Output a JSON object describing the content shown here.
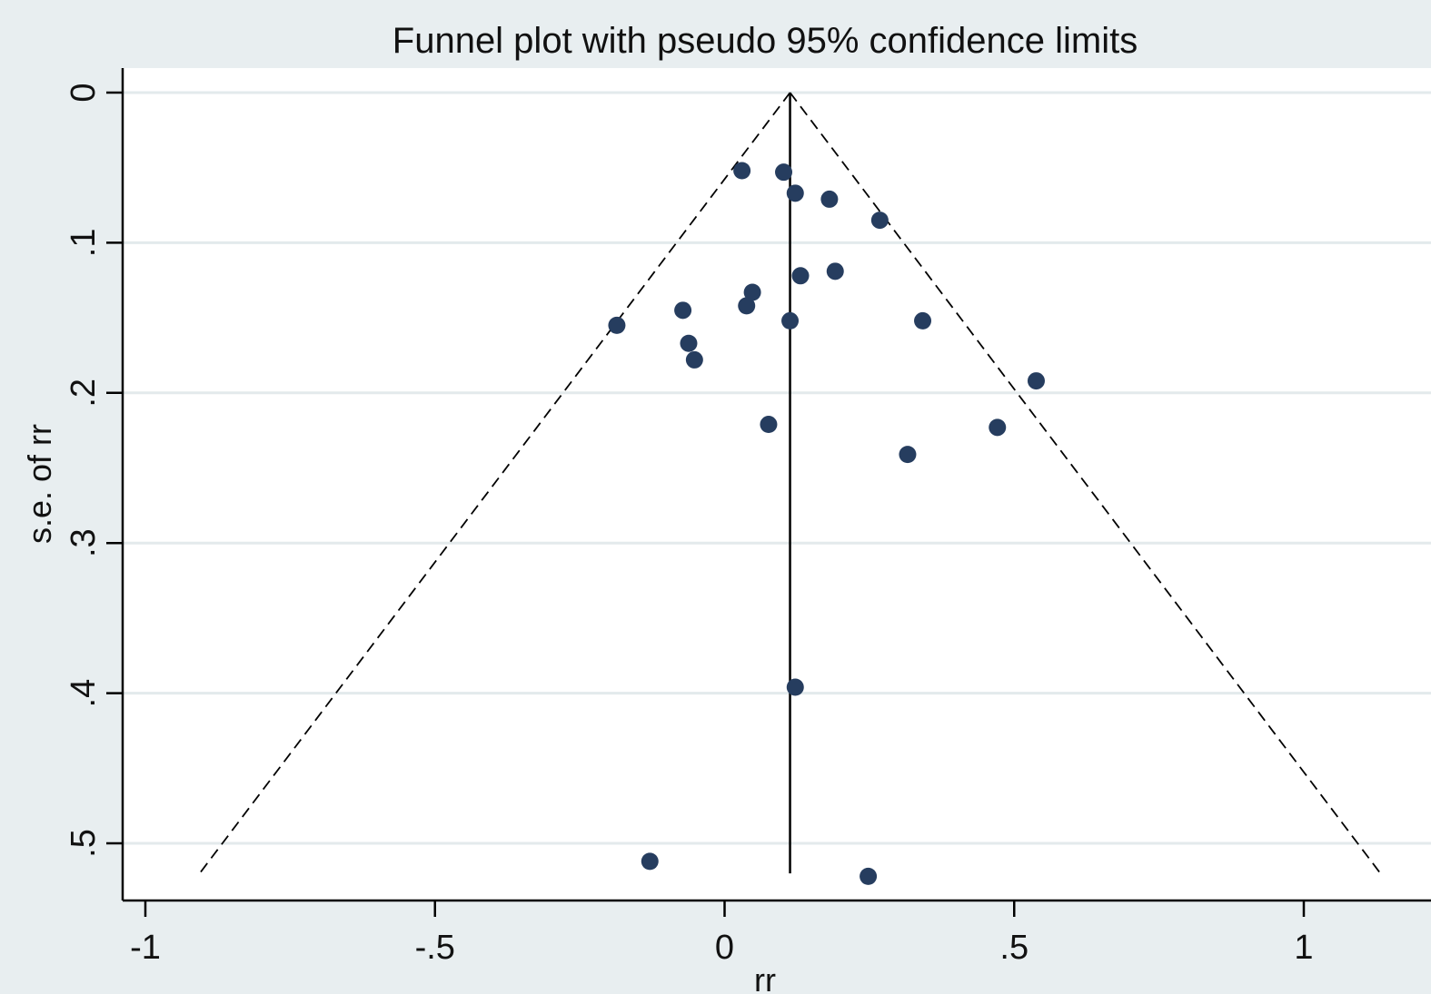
{
  "chart_data": {
    "type": "scatter",
    "title": "Funnel plot with pseudo 95% confidence limits",
    "xlabel": "rr",
    "ylabel": "s.e. of rr",
    "xlim": [
      -1.04,
      1.14
    ],
    "ylim": [
      0,
      0.535
    ],
    "y_reversed": true,
    "x_ticks": [
      {
        "value": -1,
        "label": "-1"
      },
      {
        "value": -0.5,
        "label": "-.5"
      },
      {
        "value": 0,
        "label": "0"
      },
      {
        "value": 0.5,
        "label": ".5"
      },
      {
        "value": 1,
        "label": "1"
      }
    ],
    "y_ticks": [
      {
        "value": 0,
        "label": "0"
      },
      {
        "value": 0.1,
        "label": ".1"
      },
      {
        "value": 0.2,
        "label": ".2"
      },
      {
        "value": 0.3,
        "label": ".3"
      },
      {
        "value": 0.4,
        "label": ".4"
      },
      {
        "value": 0.5,
        "label": ".5"
      }
    ],
    "grid": "horizontal",
    "pooled_effect": 0.113,
    "funnel_se_max": 0.52,
    "series": [
      {
        "color": "#263d5f",
        "points": [
          {
            "x": 0.03,
            "y": 0.052
          },
          {
            "x": 0.102,
            "y": 0.053
          },
          {
            "x": 0.122,
            "y": 0.067
          },
          {
            "x": 0.181,
            "y": 0.071
          },
          {
            "x": 0.268,
            "y": 0.085
          },
          {
            "x": 0.191,
            "y": 0.119
          },
          {
            "x": 0.131,
            "y": 0.122
          },
          {
            "x": 0.048,
            "y": 0.133
          },
          {
            "x": 0.038,
            "y": 0.142
          },
          {
            "x": -0.072,
            "y": 0.145
          },
          {
            "x": 0.113,
            "y": 0.152
          },
          {
            "x": 0.342,
            "y": 0.152
          },
          {
            "x": -0.186,
            "y": 0.155
          },
          {
            "x": -0.062,
            "y": 0.167
          },
          {
            "x": -0.052,
            "y": 0.178
          },
          {
            "x": 0.538,
            "y": 0.192
          },
          {
            "x": 0.076,
            "y": 0.221
          },
          {
            "x": 0.471,
            "y": 0.223
          },
          {
            "x": 0.316,
            "y": 0.241
          },
          {
            "x": 0.122,
            "y": 0.396
          },
          {
            "x": -0.129,
            "y": 0.512
          },
          {
            "x": 0.248,
            "y": 0.522
          }
        ]
      }
    ],
    "colors": {
      "outer_background": "#e8eef0",
      "plot_background": "#ffffff",
      "gridline": "#e3eaec",
      "marker": "#263d5f",
      "line": "#000000"
    }
  }
}
